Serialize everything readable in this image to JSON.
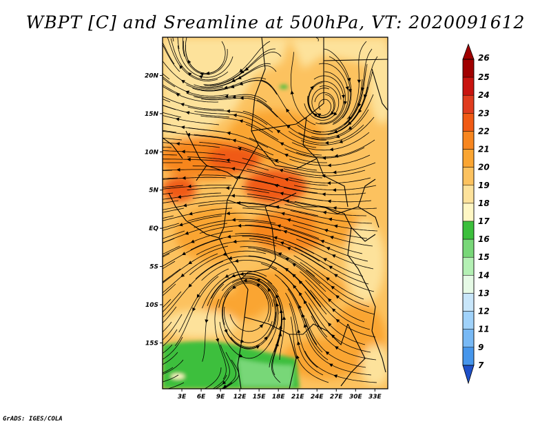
{
  "title": "WBPT [C] and Sreamline at 500hPa, VT: 2020091612",
  "credit": "GrADS: IGES/COLA",
  "map": {
    "lon_range": [
      0,
      35
    ],
    "lat_range": [
      -21,
      25
    ],
    "lat_ticks": [
      {
        "label": "20N",
        "value": 20
      },
      {
        "label": "15N",
        "value": 15
      },
      {
        "label": "10N",
        "value": 10
      },
      {
        "label": "5N",
        "value": 5
      },
      {
        "label": "EQ",
        "value": 0
      },
      {
        "label": "5S",
        "value": -5
      },
      {
        "label": "10S",
        "value": -10
      },
      {
        "label": "15S",
        "value": -15
      }
    ],
    "lon_ticks": [
      {
        "label": "3E",
        "value": 3
      },
      {
        "label": "6E",
        "value": 6
      },
      {
        "label": "9E",
        "value": 9
      },
      {
        "label": "12E",
        "value": 12
      },
      {
        "label": "15E",
        "value": 15
      },
      {
        "label": "18E",
        "value": 18
      },
      {
        "label": "21E",
        "value": 21
      },
      {
        "label": "24E",
        "value": 24
      },
      {
        "label": "27E",
        "value": 27
      },
      {
        "label": "30E",
        "value": 30
      },
      {
        "label": "33E",
        "value": 33
      }
    ]
  },
  "colorbar": {
    "levels": [
      {
        "label": "26",
        "color": "#a00000"
      },
      {
        "label": "25",
        "color": "#c8140f"
      },
      {
        "label": "24",
        "color": "#e03c1e"
      },
      {
        "label": "23",
        "color": "#f05a14"
      },
      {
        "label": "22",
        "color": "#f7861f"
      },
      {
        "label": "21",
        "color": "#faa532"
      },
      {
        "label": "20",
        "color": "#fcc25f"
      },
      {
        "label": "19",
        "color": "#fde29b"
      },
      {
        "label": "18",
        "color": "#fff7c4"
      },
      {
        "label": "17",
        "color": "#3cbf3c"
      },
      {
        "label": "16",
        "color": "#78d778"
      },
      {
        "label": "15",
        "color": "#b4f0b4"
      },
      {
        "label": "14",
        "color": "#e6fae6"
      },
      {
        "label": "13",
        "color": "#c8e6fa"
      },
      {
        "label": "12",
        "color": "#a0d2fa"
      },
      {
        "label": "11",
        "color": "#78b9f5"
      },
      {
        "label": "9",
        "color": "#4696eb"
      },
      {
        "label": "7",
        "color": "#2864dc"
      }
    ],
    "below_color": "#1e50c8"
  }
}
